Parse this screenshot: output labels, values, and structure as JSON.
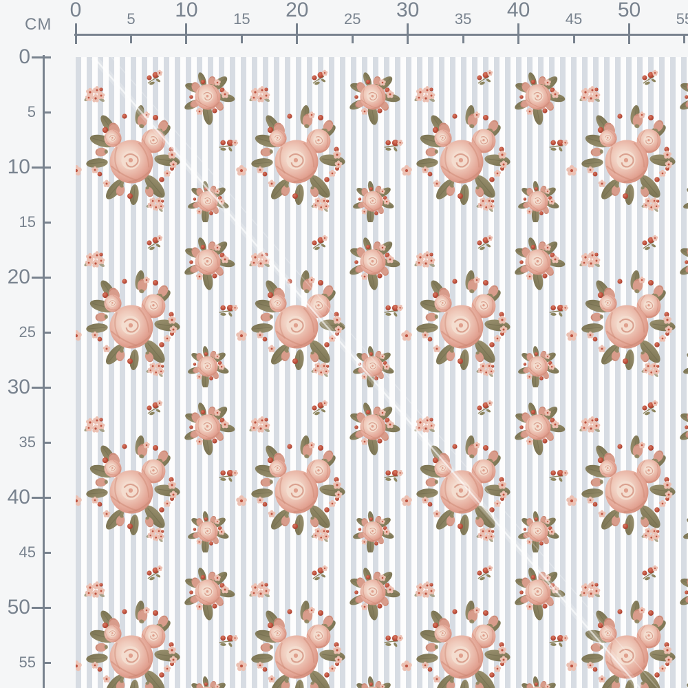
{
  "ruler": {
    "unit_label": "CM",
    "top_major": [
      "0",
      "10",
      "20",
      "30",
      "40",
      "50"
    ],
    "top_minor": [
      "5",
      "15",
      "25",
      "35",
      "45",
      "55"
    ],
    "left_major": [
      "0",
      "10",
      "20",
      "30",
      "40",
      "50"
    ],
    "left_minor": [
      "5",
      "15",
      "25",
      "35",
      "45",
      "55"
    ]
  },
  "colors": {
    "ruler_gray": "#78828e",
    "page_bg": "#f5f6f7",
    "fabric_bg": "#fdfdfd",
    "stripe": "#d7dce3",
    "rose_deep": "#c97f6d",
    "rose_mid": "#e3a392",
    "rose_light": "#efc7b7",
    "rose_pale": "#f6e4d8",
    "leaf": "#8d855f",
    "leaf_dark": "#6e684a",
    "berry": "#b44a38",
    "bud": "#d89c8b",
    "floret": "#ecc0b2",
    "floret_center": "#bf5340",
    "sheen": "#ffffff"
  }
}
